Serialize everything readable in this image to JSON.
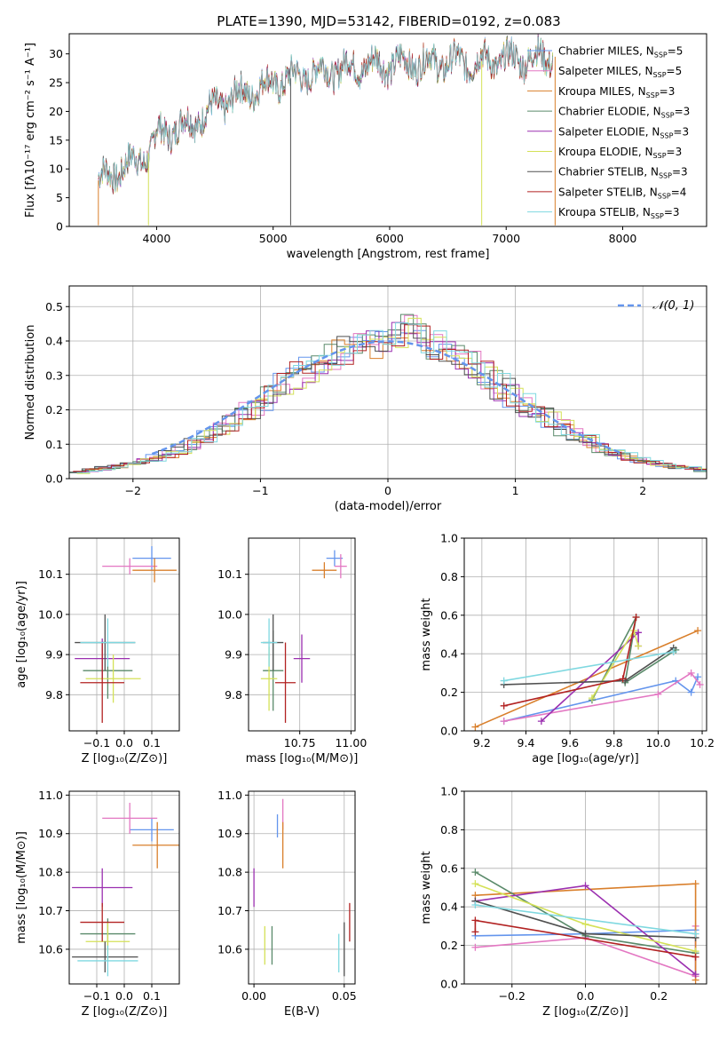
{
  "figure_title": "PLATE=1390, MJD=53142, FIBERID=0192, z=0.083",
  "colors": {
    "c1": "#6495ed",
    "c2": "#e377c2",
    "c3": "#d97f2b",
    "c4": "#5a8a6a",
    "c5": "#9b30b0",
    "c6": "#d4e157",
    "c7": "#505050",
    "c8": "#b22222",
    "c9": "#7fd8e0"
  },
  "chart_data": [
    {
      "id": "spectrum",
      "type": "line",
      "title": "PLATE=1390, MJD=53142, FIBERID=0192, z=0.083",
      "xlabel": "wavelength [Angstrom, rest frame]",
      "ylabel": "Flux [fλ10⁻¹⁷ erg cm⁻² s⁻¹ A⁻¹]",
      "xlim": [
        3250,
        8720
      ],
      "ylim": [
        0,
        33.5
      ],
      "xticks": [
        4000,
        5000,
        6000,
        7000,
        8000
      ],
      "yticks": [
        0,
        5,
        10,
        15,
        20,
        25,
        30
      ],
      "grid": false,
      "legend_position": "top-right",
      "spectrum_range": [
        3500,
        7400
      ],
      "continuum_points": [
        [
          3500,
          8
        ],
        [
          3700,
          10
        ],
        [
          3950,
          13
        ],
        [
          4000,
          16
        ],
        [
          4300,
          18
        ],
        [
          4600,
          22
        ],
        [
          5000,
          25
        ],
        [
          5400,
          27
        ],
        [
          5800,
          28
        ],
        [
          6200,
          28.5
        ],
        [
          6600,
          28.5
        ],
        [
          7000,
          29
        ],
        [
          7400,
          29.5
        ]
      ],
      "series": [
        {
          "name": "Chabrier MILES, N$_{SSP}$=5",
          "label_main": "Chabrier MILES, N",
          "label_sub": "SSP",
          "label_tail": "=5",
          "color_key": "c1"
        },
        {
          "name": "Salpeter MILES, N$_{SSP}$=5",
          "label_main": "Salpeter MILES, N",
          "label_sub": "SSP",
          "label_tail": "=5",
          "color_key": "c2"
        },
        {
          "name": "Kroupa MILES, N$_{SSP}$=3",
          "label_main": "Kroupa MILES, N",
          "label_sub": "SSP",
          "label_tail": "=3",
          "color_key": "c3"
        },
        {
          "name": "Chabrier ELODIE, N$_{SSP}$=3",
          "label_main": "Chabrier ELODIE, N",
          "label_sub": "SSP",
          "label_tail": "=3",
          "color_key": "c4"
        },
        {
          "name": "Salpeter ELODIE, N$_{SSP}$=3",
          "label_main": "Salpeter ELODIE, N",
          "label_sub": "SSP",
          "label_tail": "=3",
          "color_key": "c5"
        },
        {
          "name": "Kroupa ELODIE, N$_{SSP}$=3",
          "label_main": "Kroupa ELODIE, N",
          "label_sub": "SSP",
          "label_tail": "=3",
          "color_key": "c6"
        },
        {
          "name": "Chabrier STELIB, N$_{SSP}$=3",
          "label_main": "Chabrier STELIB, N",
          "label_sub": "SSP",
          "label_tail": "=3",
          "color_key": "c7"
        },
        {
          "name": "Salpeter STELIB, N$_{SSP}$=4",
          "label_main": "Salpeter STELIB, N",
          "label_sub": "SSP",
          "label_tail": "=4",
          "color_key": "c8"
        },
        {
          "name": "Kroupa STELIB, N$_{SSP}$=3",
          "label_main": "Kroupa STELIB, N",
          "label_sub": "SSP",
          "label_tail": "=3",
          "color_key": "c9"
        }
      ]
    },
    {
      "id": "residuals",
      "type": "line",
      "xlabel": "(data-model)/error",
      "ylabel": "Normed distribution",
      "xlim": [
        -2.5,
        2.5
      ],
      "ylim": [
        0,
        0.56
      ],
      "xticks": [
        -2,
        -1,
        0,
        1,
        2
      ],
      "yticks": [
        0.0,
        0.1,
        0.2,
        0.3,
        0.4,
        0.5
      ],
      "grid": true,
      "legend_position": "top-right",
      "legend_label": "𝒩(0, 1)",
      "reference_curve": "normal(0,1)",
      "bins": [
        -2.5,
        -2.4,
        -2.3,
        -2.2,
        -2.1,
        -2.0,
        -1.9,
        -1.8,
        -1.7,
        -1.6,
        -1.5,
        -1.4,
        -1.3,
        -1.2,
        -1.1,
        -1.0,
        -0.9,
        -0.8,
        -0.7,
        -0.6,
        -0.5,
        -0.4,
        -0.3,
        -0.2,
        -0.1,
        0.0,
        0.1,
        0.2,
        0.3,
        0.4,
        0.5,
        0.6,
        0.7,
        0.8,
        0.9,
        1.0,
        1.1,
        1.2,
        1.3,
        1.4,
        1.5,
        1.6,
        1.7,
        1.8,
        1.9,
        2.0,
        2.1,
        2.2,
        2.3,
        2.4
      ],
      "hist_base": [
        0.018,
        0.025,
        0.03,
        0.035,
        0.04,
        0.05,
        0.06,
        0.07,
        0.085,
        0.1,
        0.12,
        0.14,
        0.16,
        0.19,
        0.21,
        0.24,
        0.27,
        0.3,
        0.32,
        0.34,
        0.36,
        0.37,
        0.38,
        0.39,
        0.4,
        0.42,
        0.44,
        0.41,
        0.39,
        0.37,
        0.35,
        0.33,
        0.3,
        0.27,
        0.25,
        0.22,
        0.2,
        0.18,
        0.15,
        0.13,
        0.11,
        0.09,
        0.08,
        0.065,
        0.055,
        0.045,
        0.04,
        0.035,
        0.03,
        0.025
      ],
      "hist_offsets": [
        0.0,
        0.02,
        -0.02,
        0.03,
        -0.03,
        0.015,
        -0.015,
        0.04,
        -0.04
      ]
    },
    {
      "id": "age-vs-Z",
      "type": "scatter",
      "xlabel": "Z [log₁₀(Z/Z⊙)]",
      "ylabel": "age  [log₁₀(age/yr)]",
      "xlim": [
        -0.2,
        0.2
      ],
      "ylim": [
        9.71,
        10.19
      ],
      "xticks": [
        -0.1,
        0.0,
        0.1
      ],
      "yticks": [
        9.8,
        9.9,
        10.0,
        10.1
      ],
      "grid": true,
      "points": [
        {
          "color_key": "c1",
          "x": 0.1,
          "y": 10.14,
          "xerr": 0.07,
          "yerr": 0.03
        },
        {
          "color_key": "c2",
          "x": 0.02,
          "y": 10.12,
          "xerr": 0.1,
          "yerr": 0.02
        },
        {
          "color_key": "c3",
          "x": 0.11,
          "y": 10.11,
          "xerr": 0.08,
          "yerr": 0.03
        },
        {
          "color_key": "c4",
          "x": -0.06,
          "y": 9.86,
          "xerr": 0.09,
          "yerr": 0.07
        },
        {
          "color_key": "c5",
          "x": -0.08,
          "y": 9.89,
          "xerr": 0.1,
          "yerr": 0.05
        },
        {
          "color_key": "c6",
          "x": -0.04,
          "y": 9.84,
          "xerr": 0.1,
          "yerr": 0.06
        },
        {
          "color_key": "c7",
          "x": -0.07,
          "y": 9.93,
          "xerr": 0.11,
          "yerr": 0.07
        },
        {
          "color_key": "c8",
          "x": -0.08,
          "y": 9.83,
          "xerr": 0.08,
          "yerr": 0.1
        },
        {
          "color_key": "c9",
          "x": -0.06,
          "y": 9.93,
          "xerr": 0.1,
          "yerr": 0.06
        }
      ]
    },
    {
      "id": "age-vs-mass",
      "type": "scatter",
      "xlabel": "mass [log₁₀(M/M⊙)]",
      "ylabel": "",
      "xlim": [
        10.5,
        11.02
      ],
      "ylim": [
        9.71,
        10.19
      ],
      "xticks": [
        10.75,
        11.0
      ],
      "yticks": [
        9.8,
        9.9,
        10.0,
        10.1
      ],
      "grid": true,
      "points": [
        {
          "color_key": "c1",
          "x": 10.92,
          "y": 10.14,
          "xerr": 0.04,
          "yerr": 0.02
        },
        {
          "color_key": "c2",
          "x": 10.95,
          "y": 10.12,
          "xerr": 0.03,
          "yerr": 0.03
        },
        {
          "color_key": "c3",
          "x": 10.87,
          "y": 10.11,
          "xerr": 0.06,
          "yerr": 0.02
        },
        {
          "color_key": "c4",
          "x": 10.62,
          "y": 9.86,
          "xerr": 0.05,
          "yerr": 0.1
        },
        {
          "color_key": "c5",
          "x": 10.76,
          "y": 9.89,
          "xerr": 0.04,
          "yerr": 0.06
        },
        {
          "color_key": "c6",
          "x": 10.6,
          "y": 9.84,
          "xerr": 0.04,
          "yerr": 0.08
        },
        {
          "color_key": "c7",
          "x": 10.62,
          "y": 9.93,
          "xerr": 0.05,
          "yerr": 0.07
        },
        {
          "color_key": "c8",
          "x": 10.68,
          "y": 9.83,
          "xerr": 0.05,
          "yerr": 0.1
        },
        {
          "color_key": "c9",
          "x": 10.6,
          "y": 9.93,
          "xerr": 0.04,
          "yerr": 0.06
        }
      ]
    },
    {
      "id": "weight-vs-age",
      "type": "line",
      "xlabel": "age  [log₁₀(age/yr)]",
      "ylabel": "mass weight",
      "xlim": [
        9.12,
        10.22
      ],
      "ylim": [
        0,
        1.0
      ],
      "xticks": [
        9.2,
        9.4,
        9.6,
        9.8,
        10.0,
        10.2
      ],
      "yticks": [
        0.0,
        0.2,
        0.4,
        0.6,
        0.8,
        1.0
      ],
      "grid": true,
      "series": [
        {
          "color_key": "c1",
          "x": [
            9.3,
            10.08,
            10.15,
            10.18
          ],
          "y": [
            0.05,
            0.26,
            0.2,
            0.28
          ]
        },
        {
          "color_key": "c2",
          "x": [
            9.3,
            10.0,
            10.15,
            10.19
          ],
          "y": [
            0.05,
            0.19,
            0.3,
            0.24
          ]
        },
        {
          "color_key": "c3",
          "x": [
            9.17,
            10.18
          ],
          "y": [
            0.02,
            0.52
          ]
        },
        {
          "color_key": "c4",
          "x": [
            9.7,
            9.9,
            9.85,
            10.08
          ],
          "y": [
            0.16,
            0.59,
            0.25,
            0.42
          ]
        },
        {
          "color_key": "c5",
          "x": [
            9.47,
            9.91,
            9.91
          ],
          "y": [
            0.05,
            0.51,
            0.44
          ]
        },
        {
          "color_key": "c6",
          "x": [
            9.7,
            9.89,
            9.91
          ],
          "y": [
            0.17,
            0.52,
            0.44
          ]
        },
        {
          "color_key": "c7",
          "x": [
            9.3,
            9.85,
            10.07
          ],
          "y": [
            0.24,
            0.26,
            0.43
          ]
        },
        {
          "color_key": "c8",
          "x": [
            9.3,
            9.84,
            9.9
          ],
          "y": [
            0.13,
            0.27,
            0.59
          ]
        },
        {
          "color_key": "c9",
          "x": [
            9.3,
            10.07
          ],
          "y": [
            0.26,
            0.41
          ]
        }
      ]
    },
    {
      "id": "mass-vs-Z",
      "type": "scatter",
      "xlabel": "Z [log₁₀(Z/Z⊙)]",
      "ylabel": "mass [log₁₀(M/M⊙)]",
      "xlim": [
        -0.2,
        0.2
      ],
      "ylim": [
        10.51,
        11.01
      ],
      "xticks": [
        -0.1,
        0.0,
        0.1
      ],
      "yticks": [
        10.6,
        10.7,
        10.8,
        10.9,
        11.0
      ],
      "grid": true,
      "points": [
        {
          "color_key": "c1",
          "x": 0.1,
          "y": 10.91,
          "xerr": 0.08,
          "yerr": 0.03
        },
        {
          "color_key": "c2",
          "x": 0.02,
          "y": 10.94,
          "xerr": 0.1,
          "yerr": 0.04
        },
        {
          "color_key": "c3",
          "x": 0.12,
          "y": 10.87,
          "xerr": 0.09,
          "yerr": 0.06
        },
        {
          "color_key": "c4",
          "x": -0.06,
          "y": 10.64,
          "xerr": 0.1,
          "yerr": 0.04
        },
        {
          "color_key": "c5",
          "x": -0.08,
          "y": 10.76,
          "xerr": 0.11,
          "yerr": 0.05
        },
        {
          "color_key": "c6",
          "x": -0.06,
          "y": 10.62,
          "xerr": 0.08,
          "yerr": 0.05
        },
        {
          "color_key": "c7",
          "x": -0.07,
          "y": 10.58,
          "xerr": 0.12,
          "yerr": 0.04
        },
        {
          "color_key": "c8",
          "x": -0.08,
          "y": 10.67,
          "xerr": 0.08,
          "yerr": 0.05
        },
        {
          "color_key": "c9",
          "x": -0.06,
          "y": 10.57,
          "xerr": 0.11,
          "yerr": 0.04
        }
      ]
    },
    {
      "id": "mass-vs-ebv",
      "type": "scatter",
      "xlabel": "E(B-V)",
      "ylabel": "",
      "xlim": [
        -0.003,
        0.056
      ],
      "ylim": [
        10.51,
        11.01
      ],
      "xticks": [
        0.0,
        0.05
      ],
      "yticks": [
        10.6,
        10.7,
        10.8,
        10.9,
        11.0
      ],
      "grid": true,
      "points": [
        {
          "color_key": "c1",
          "x": 0.013,
          "y": 10.92,
          "xerr": 0,
          "yerr": 0.03
        },
        {
          "color_key": "c2",
          "x": 0.016,
          "y": 10.95,
          "xerr": 0,
          "yerr": 0.04
        },
        {
          "color_key": "c3",
          "x": 0.016,
          "y": 10.87,
          "xerr": 0,
          "yerr": 0.06
        },
        {
          "color_key": "c4",
          "x": 0.01,
          "y": 10.61,
          "xerr": 0,
          "yerr": 0.05
        },
        {
          "color_key": "c5",
          "x": 0.0,
          "y": 10.76,
          "xerr": 0,
          "yerr": 0.05
        },
        {
          "color_key": "c6",
          "x": 0.006,
          "y": 10.61,
          "xerr": 0,
          "yerr": 0.05
        },
        {
          "color_key": "c7",
          "x": 0.05,
          "y": 10.6,
          "xerr": 0,
          "yerr": 0.07
        },
        {
          "color_key": "c8",
          "x": 0.053,
          "y": 10.67,
          "xerr": 0,
          "yerr": 0.05
        },
        {
          "color_key": "c9",
          "x": 0.047,
          "y": 10.59,
          "xerr": 0,
          "yerr": 0.05
        }
      ]
    },
    {
      "id": "weight-vs-Z",
      "type": "line",
      "xlabel": "Z [log₁₀(Z/Z⊙)]",
      "ylabel": "mass weight",
      "xlim": [
        -0.33,
        0.33
      ],
      "ylim": [
        0,
        1.0
      ],
      "xticks": [
        -0.2,
        0.0,
        0.2
      ],
      "yticks": [
        0.0,
        0.2,
        0.4,
        0.6,
        0.8,
        1.0
      ],
      "grid": true,
      "series": [
        {
          "color_key": "c1",
          "x": [
            -0.3,
            0.0,
            0.3,
            0.3
          ],
          "y": [
            0.25,
            0.26,
            0.28,
            0.05
          ]
        },
        {
          "color_key": "c2",
          "x": [
            -0.3,
            0.0,
            0.3,
            0.3
          ],
          "y": [
            0.19,
            0.24,
            0.04,
            0.3
          ]
        },
        {
          "color_key": "c3",
          "x": [
            -0.3,
            0.3,
            0.3
          ],
          "y": [
            0.46,
            0.52,
            0.02
          ]
        },
        {
          "color_key": "c4",
          "x": [
            -0.3,
            0.0,
            0.3
          ],
          "y": [
            0.58,
            0.25,
            0.16
          ]
        },
        {
          "color_key": "c5",
          "x": [
            -0.3,
            0.0,
            0.3
          ],
          "y": [
            0.43,
            0.51,
            0.05
          ]
        },
        {
          "color_key": "c6",
          "x": [
            -0.3,
            0.0,
            0.3
          ],
          "y": [
            0.52,
            0.31,
            0.17
          ]
        },
        {
          "color_key": "c7",
          "x": [
            -0.3,
            0.0,
            0.3
          ],
          "y": [
            0.43,
            0.26,
            0.24
          ]
        },
        {
          "color_key": "c8",
          "x": [
            -0.3,
            -0.3,
            0.3
          ],
          "y": [
            0.27,
            0.33,
            0.14
          ]
        },
        {
          "color_key": "c9",
          "x": [
            -0.3,
            0.3
          ],
          "y": [
            0.41,
            0.26
          ]
        }
      ]
    }
  ]
}
